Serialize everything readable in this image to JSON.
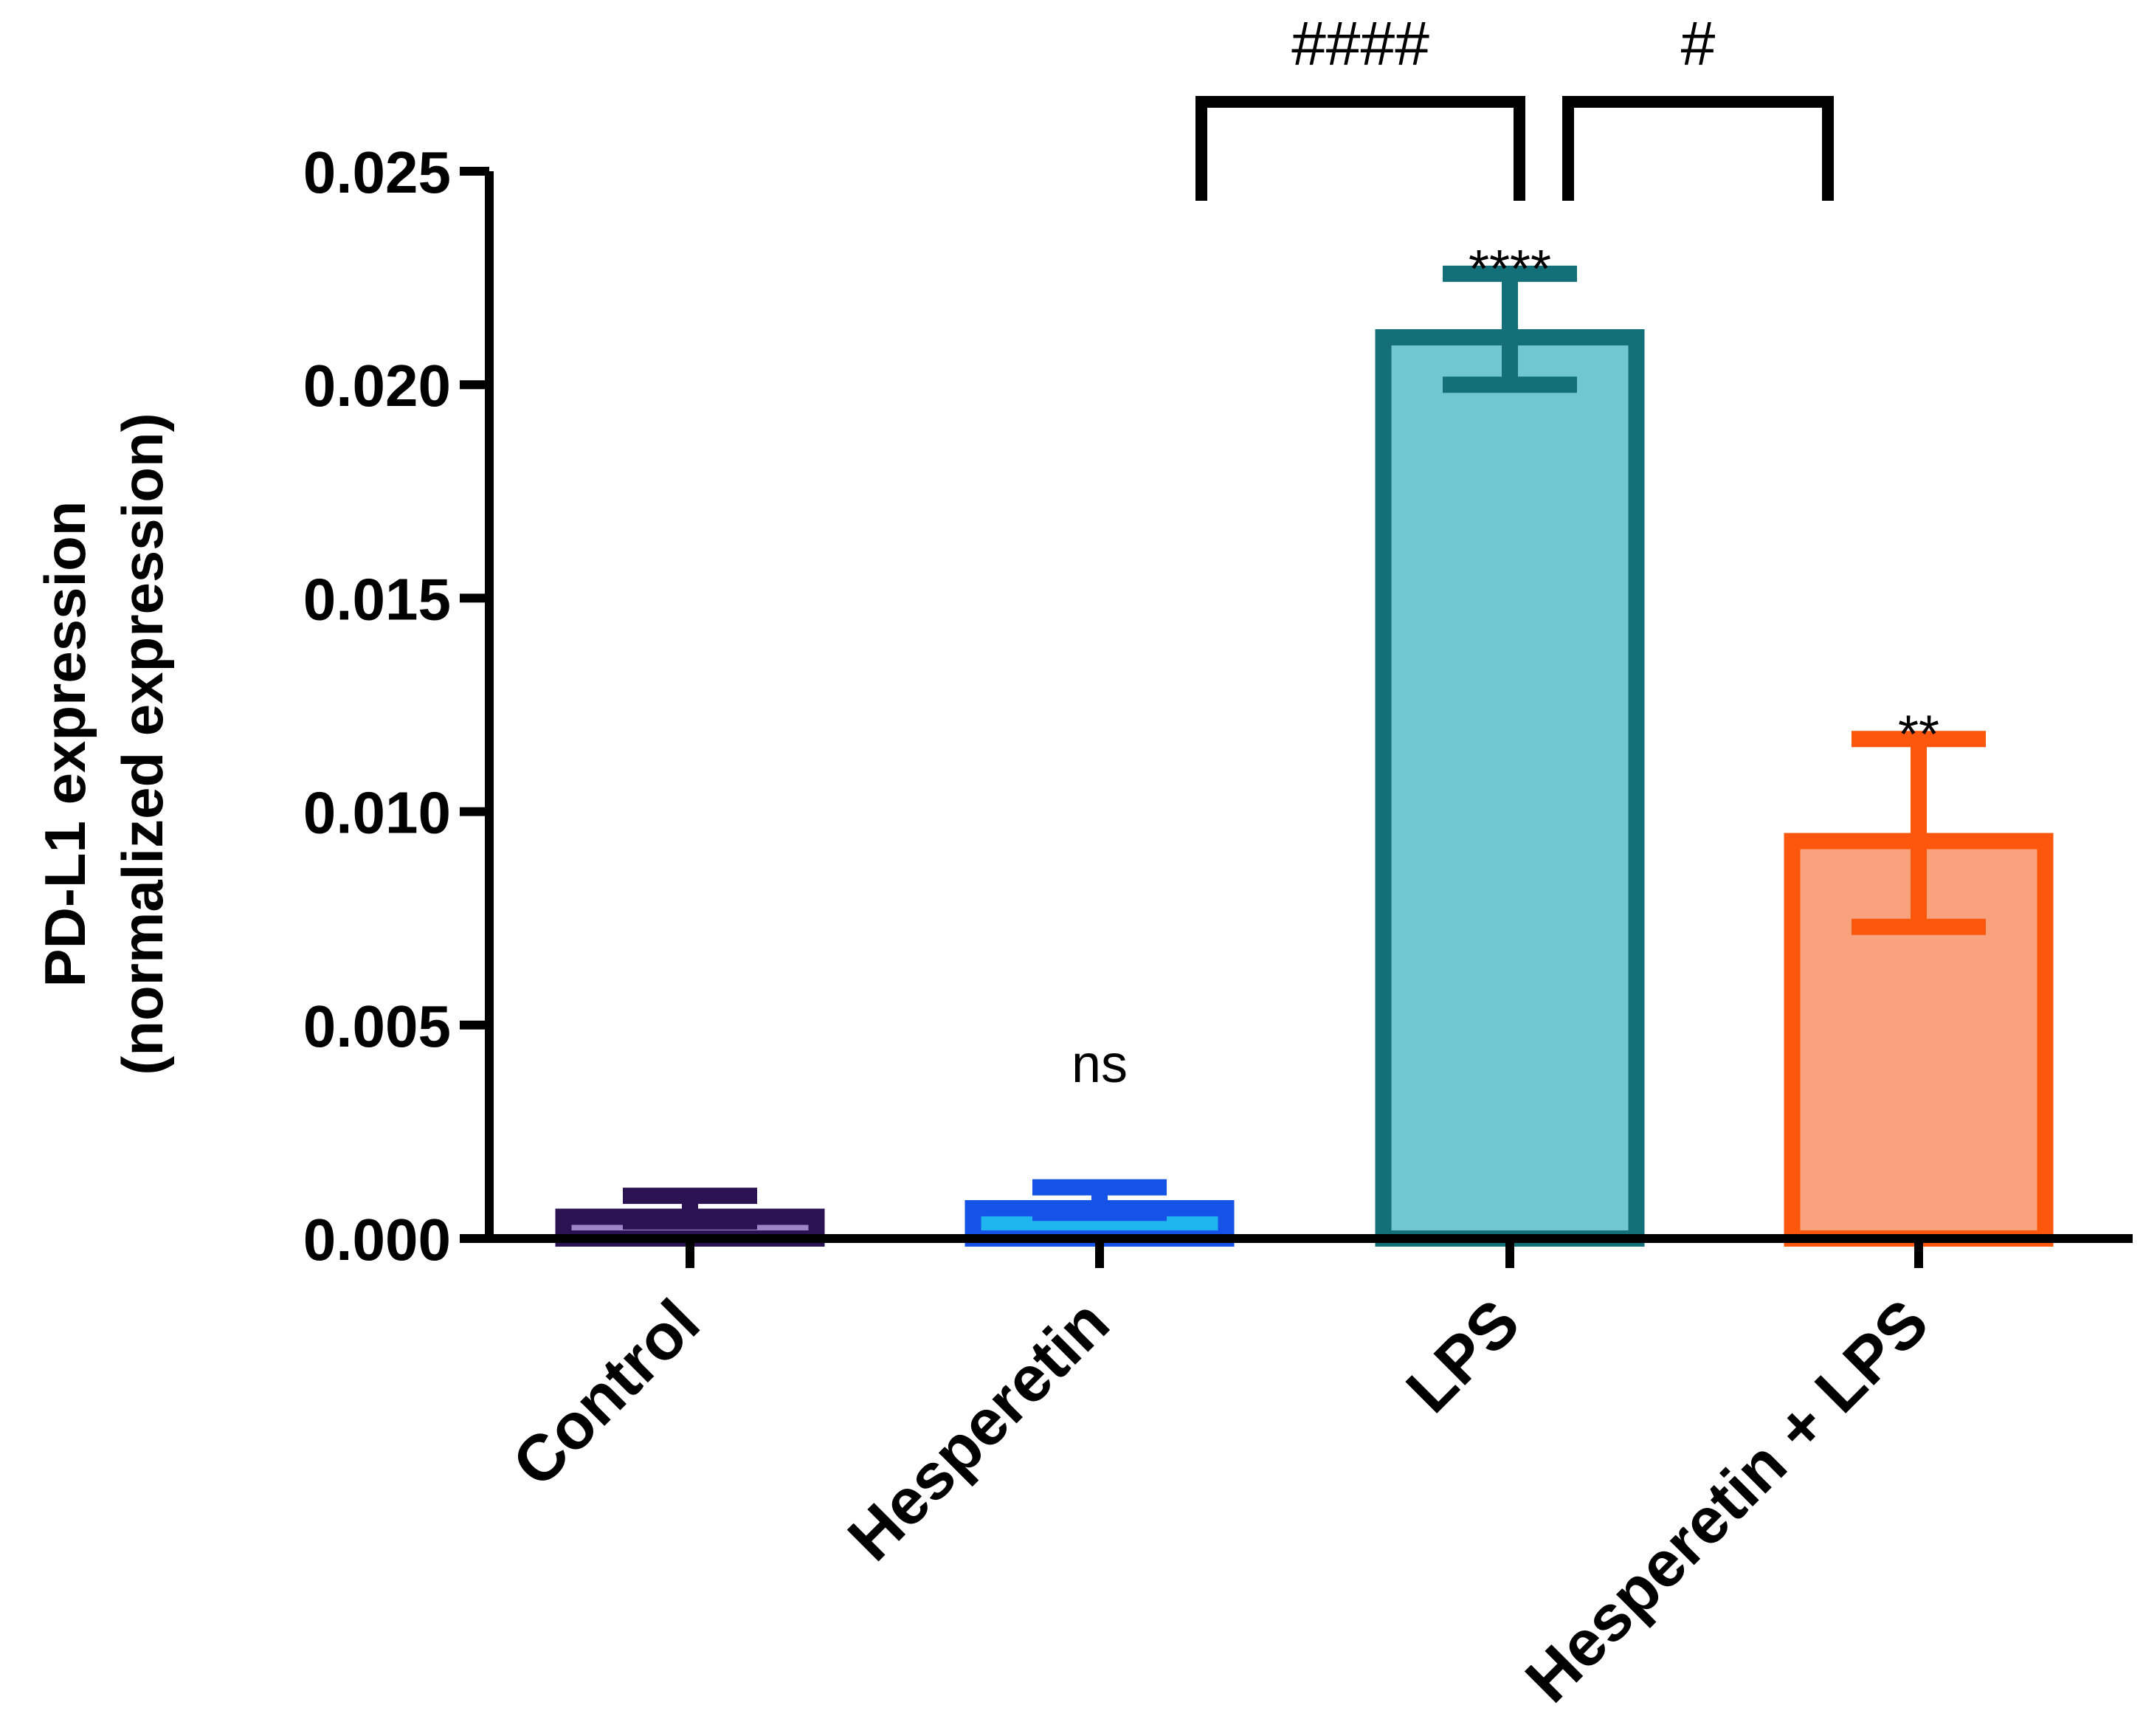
{
  "chart_data": {
    "type": "bar",
    "title": "",
    "xlabel": "",
    "ylabel_line1": "PD-L1 expression",
    "ylabel_line2": "(normalized expression)",
    "ylim": [
      0,
      0.025
    ],
    "yticks": [
      "0.000",
      "0.005",
      "0.010",
      "0.015",
      "0.020",
      "0.025"
    ],
    "ytick_values": [
      0,
      0.005,
      0.01,
      0.015,
      0.02,
      0.025
    ],
    "categories": [
      "Control",
      "Hesperetin",
      "LPS",
      "Hesperetin + LPS"
    ],
    "values": [
      0.0007,
      0.0009,
      0.0213,
      0.0095
    ],
    "errors": [
      0.0003,
      0.0003,
      0.0013,
      0.0022
    ],
    "fill_colors": [
      "#9b86c9",
      "#1fb6f0",
      "#71c7cf",
      "#f9a27d"
    ],
    "edge_colors": [
      "#2b1353",
      "#1552e6",
      "#137079",
      "#fd560d"
    ],
    "significance": [
      "",
      "ns",
      "****",
      "**"
    ],
    "comparisons": [
      {
        "from": "Hesperetin",
        "to": "LPS",
        "label": "####"
      },
      {
        "from": "LPS",
        "to": "Hesperetin + LPS",
        "label": "#"
      }
    ]
  }
}
